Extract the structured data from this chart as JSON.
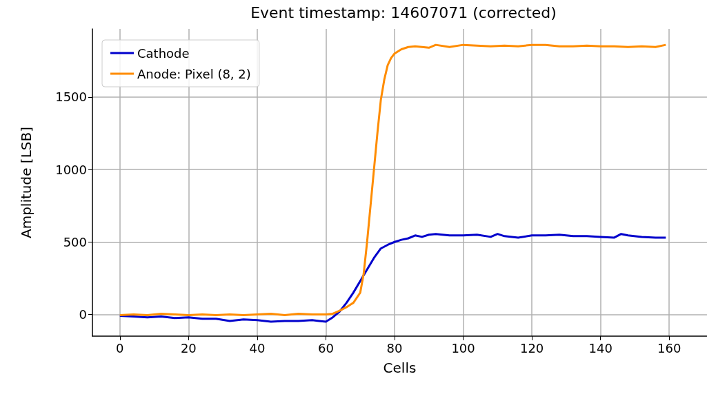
{
  "chart_data": {
    "type": "line",
    "title": "Event timestamp: 14607071 (corrected)",
    "xlabel": "Cells",
    "ylabel": "Amplitude [LSB]",
    "xlim": [
      -8,
      171
    ],
    "xticks": [
      0,
      20,
      40,
      60,
      80,
      100,
      120,
      140,
      160
    ],
    "ylim": [
      -150,
      1970
    ],
    "yticks": [
      0,
      500,
      1000,
      1500
    ],
    "grid": true,
    "legend": "top left",
    "series": [
      {
        "name": "Cathode",
        "color": "#0000cc",
        "x": [
          0,
          4,
          8,
          12,
          16,
          20,
          24,
          28,
          32,
          36,
          40,
          44,
          48,
          52,
          56,
          58,
          60,
          62,
          64,
          66,
          68,
          70,
          72,
          74,
          76,
          78,
          80,
          82,
          84,
          86,
          88,
          90,
          92,
          96,
          100,
          104,
          108,
          110,
          112,
          116,
          120,
          124,
          128,
          132,
          136,
          140,
          144,
          146,
          148,
          152,
          156,
          159
        ],
        "values": [
          -10,
          -15,
          -20,
          -15,
          -25,
          -20,
          -30,
          -30,
          -45,
          -35,
          -40,
          -50,
          -45,
          -45,
          -40,
          -45,
          -50,
          -20,
          20,
          80,
          150,
          230,
          310,
          390,
          455,
          480,
          500,
          515,
          525,
          545,
          535,
          550,
          555,
          545,
          545,
          550,
          535,
          555,
          540,
          530,
          545,
          545,
          550,
          540,
          540,
          535,
          530,
          555,
          545,
          535,
          530,
          530
        ]
      },
      {
        "name": "Anode: Pixel (8, 2)",
        "color": "#ff8c00",
        "x": [
          0,
          4,
          8,
          12,
          16,
          20,
          24,
          28,
          32,
          36,
          40,
          44,
          48,
          52,
          56,
          60,
          62,
          64,
          66,
          68,
          70,
          71,
          72,
          73,
          74,
          75,
          76,
          77,
          78,
          79,
          80,
          82,
          84,
          86,
          88,
          90,
          92,
          96,
          100,
          104,
          108,
          112,
          116,
          120,
          124,
          128,
          132,
          136,
          140,
          144,
          148,
          152,
          156,
          159
        ],
        "values": [
          -5,
          0,
          -5,
          5,
          0,
          -5,
          0,
          -5,
          0,
          -5,
          0,
          5,
          -5,
          5,
          0,
          0,
          5,
          25,
          50,
          80,
          150,
          280,
          500,
          750,
          1000,
          1250,
          1480,
          1620,
          1720,
          1770,
          1800,
          1830,
          1845,
          1850,
          1845,
          1840,
          1860,
          1845,
          1860,
          1855,
          1850,
          1855,
          1850,
          1860,
          1860,
          1850,
          1850,
          1855,
          1850,
          1850,
          1845,
          1850,
          1845,
          1860
        ]
      }
    ]
  }
}
